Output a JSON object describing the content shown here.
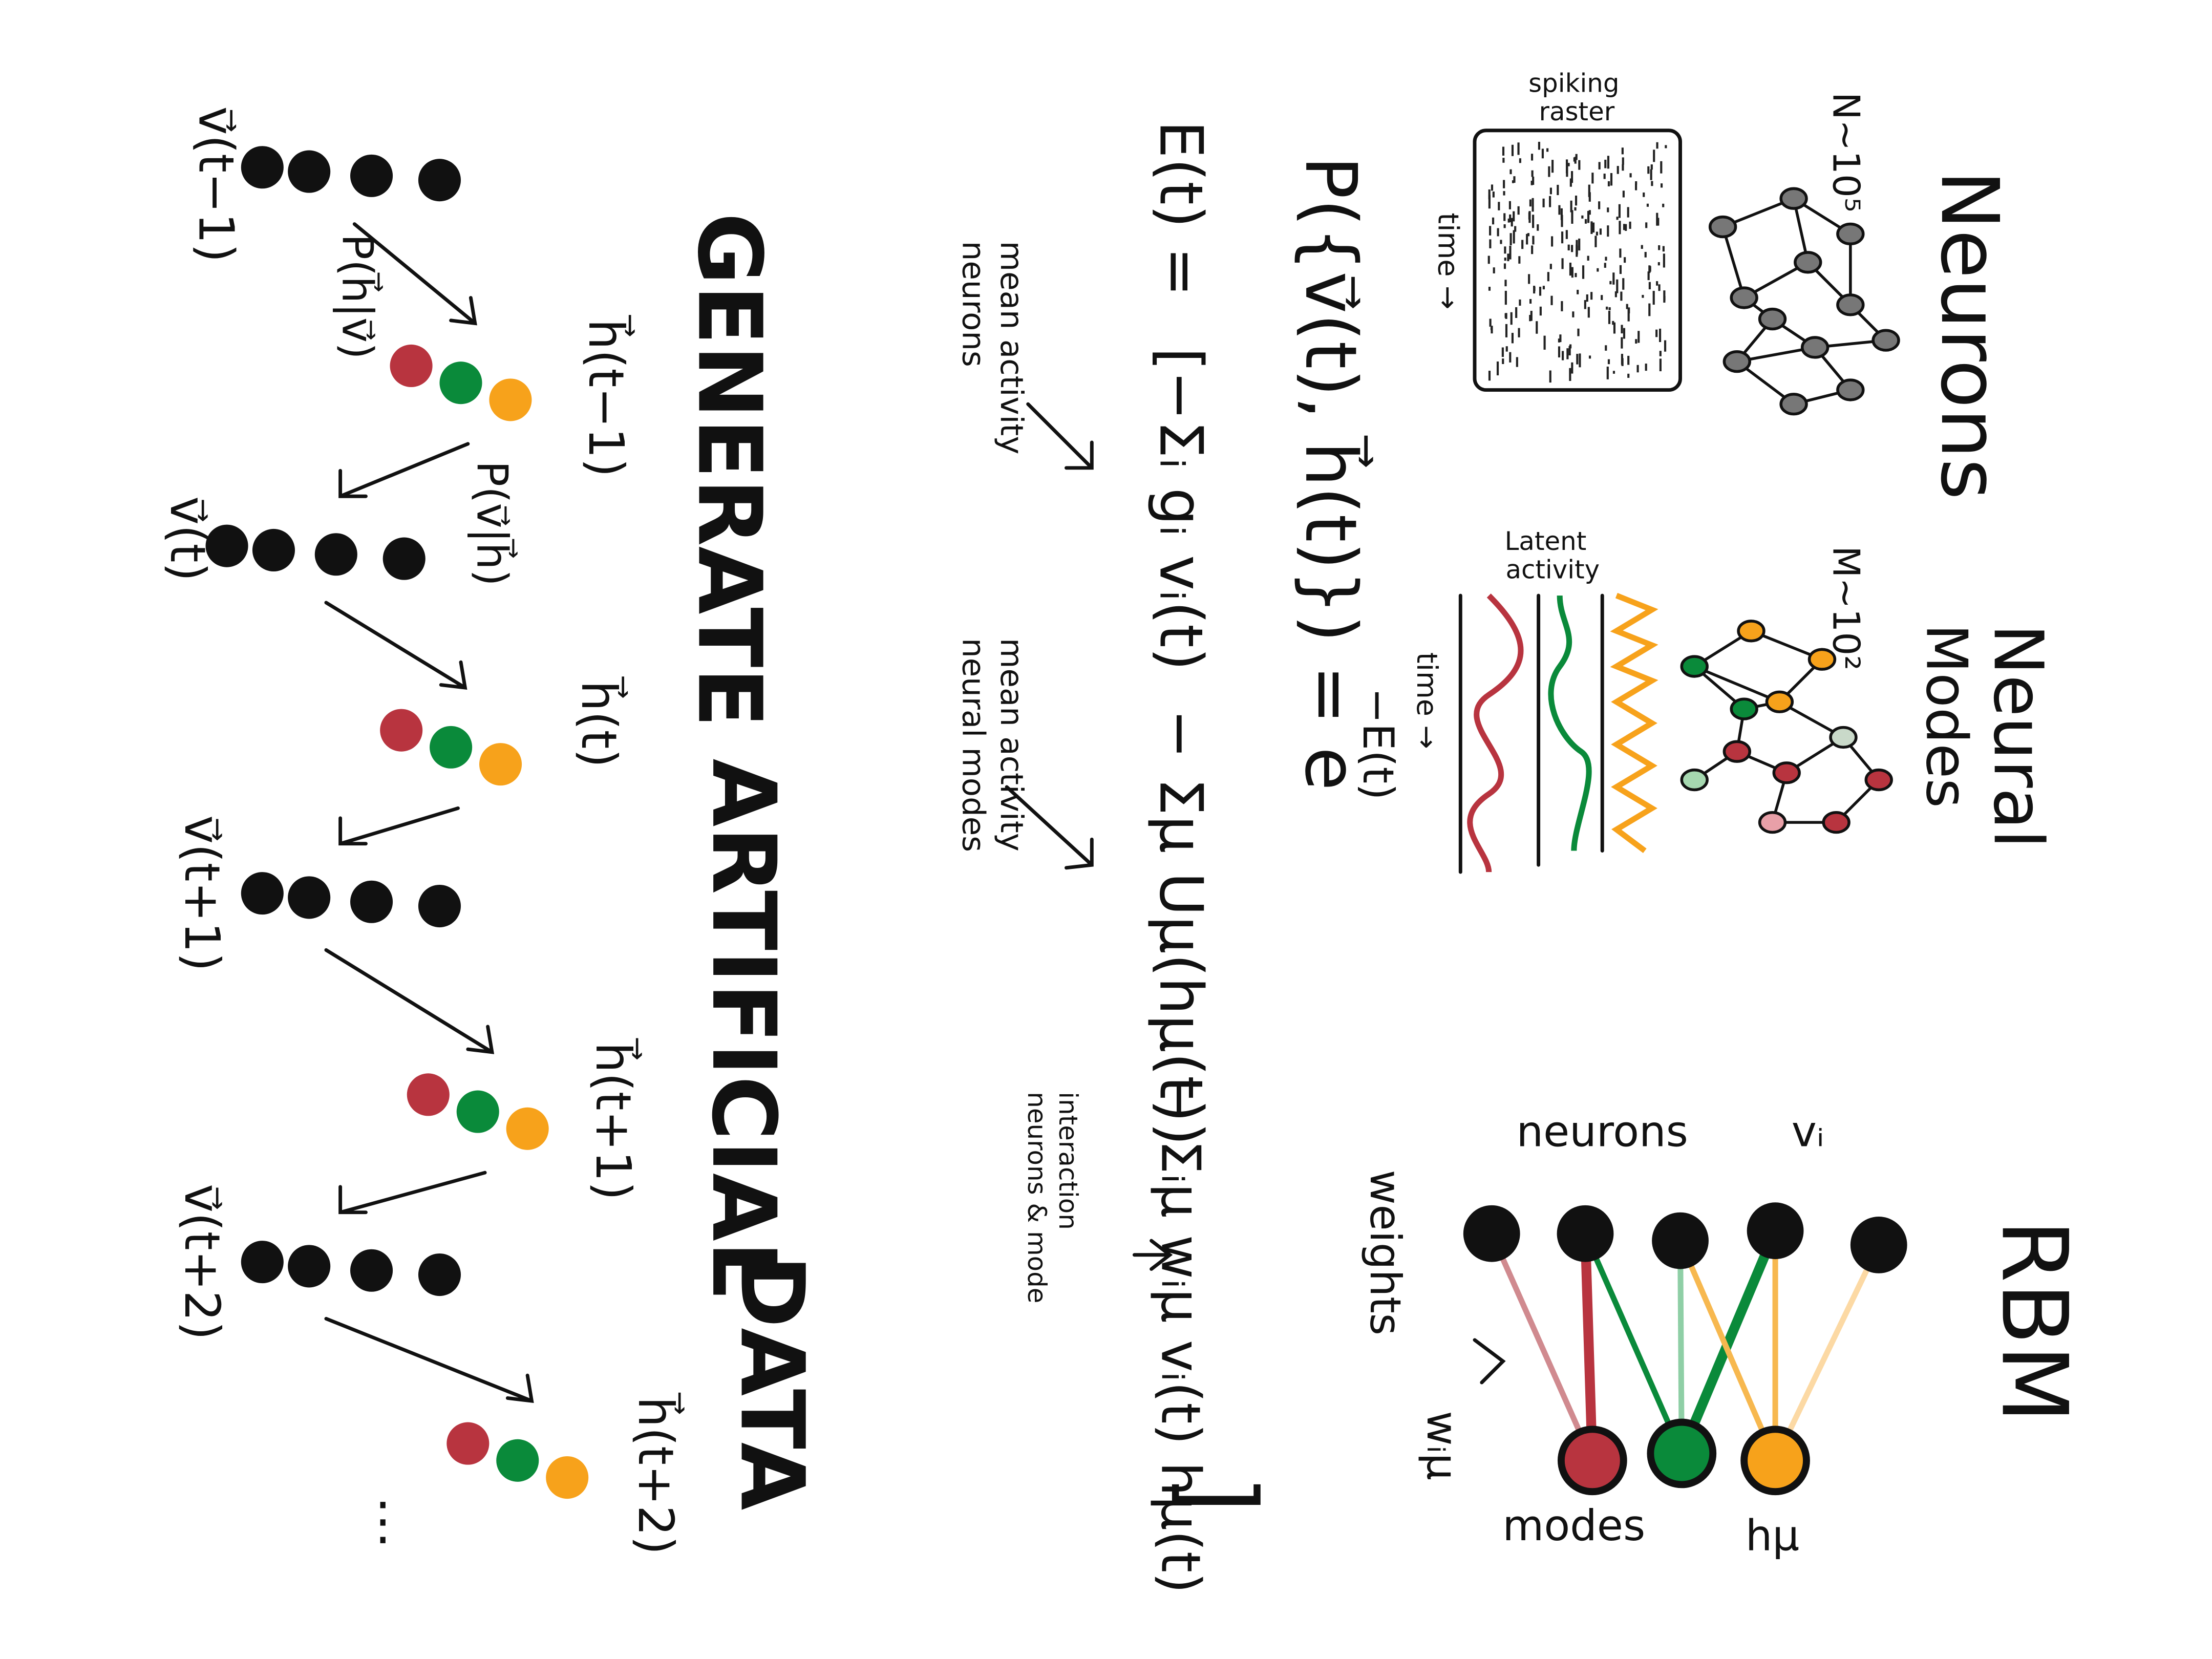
{
  "neurons_panel": {
    "title": "Neurons",
    "count": "N~10⁵",
    "raster_label": [
      "spiking",
      "raster"
    ],
    "time_label": "time →"
  },
  "modes_panel": {
    "title": [
      "Neural",
      "Modes"
    ],
    "count": "M~10²",
    "latent_label": [
      "Latent",
      "activity"
    ],
    "time_label": "time →"
  },
  "rbm_panel": {
    "title": "RBM",
    "neurons_label": "neurons",
    "neurons_symbol": "vᵢ",
    "weights_label": "weights",
    "weights_symbol": "wᵢμ",
    "modes_label": "modes",
    "modes_symbol": "hμ"
  },
  "equations": {
    "probability": "P({v⃗(t), h⃗(t)}) = e",
    "probability_exponent": "−E(t)",
    "energy_lhs": "E(t) =",
    "energy_terms": [
      "[−Σᵢ gᵢ vᵢ(t)",
      "− Σμ Uμ(hμ(t))",
      "− Σᵢμ wᵢμ vᵢ(t) hμ(t)",
      "]"
    ],
    "annotations": [
      [
        "mean activity",
        "neurons"
      ],
      [
        "mean activity",
        "neural modes"
      ],
      [
        "interaction",
        "neurons & mode"
      ]
    ]
  },
  "generate": {
    "title_words": [
      "GENERATE",
      "ARTIFICIAL",
      "DATA"
    ],
    "steps": [
      {
        "v_label": "v⃗(t−1)",
        "h_label": "h⃗(t−1)"
      },
      {
        "v_label": "v⃗(t)",
        "h_label": "h⃗(t)"
      },
      {
        "v_label": "v⃗(t+1)",
        "h_label": "h⃗(t+1)"
      },
      {
        "v_label": "v⃗(t+2)",
        "h_label": "h⃗(t+2)"
      }
    ],
    "transition_labels": [
      "P(h⃗|v⃗)",
      "P(v⃗|h⃗)"
    ],
    "ellipsis": "⋮"
  }
}
